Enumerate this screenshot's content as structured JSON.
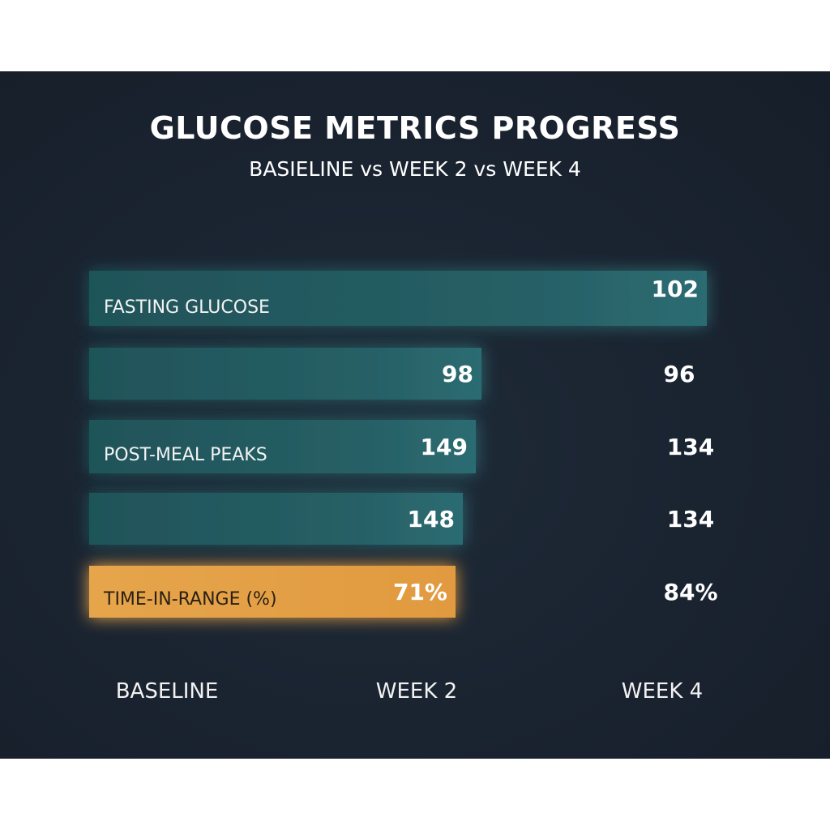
{
  "chart_data": {
    "type": "bar",
    "title": "GLUCOSE METRICS PROGRESS",
    "subtitle": "BASIELINE vs WEEK 2 vs WEEK 4",
    "periods": [
      "BASELINE",
      "WEEK 2",
      "WEEK 4"
    ],
    "rows": [
      {
        "label": "FASTING GLUCOSE",
        "bar_value": 102,
        "bar_display": "102",
        "week4_display": "",
        "highlight": false
      },
      {
        "label": "",
        "bar_value": 98,
        "bar_display": "98",
        "week4_display": "96",
        "highlight": false
      },
      {
        "label": "POST-MEAL PEAKS",
        "bar_value": 149,
        "bar_display": "149",
        "week4_display": "134",
        "highlight": false
      },
      {
        "label": "",
        "bar_value": 148,
        "bar_display": "148",
        "week4_display": "134",
        "highlight": false
      },
      {
        "label": "TIME-IN-RANGE (%)",
        "bar_value": 71,
        "bar_display": "71%",
        "week4_display": "84%",
        "highlight": true
      }
    ],
    "colors": {
      "background": "#1a2330",
      "bar": "#245e63",
      "highlight_bar": "#e5a24a",
      "text": "#ffffff"
    }
  }
}
